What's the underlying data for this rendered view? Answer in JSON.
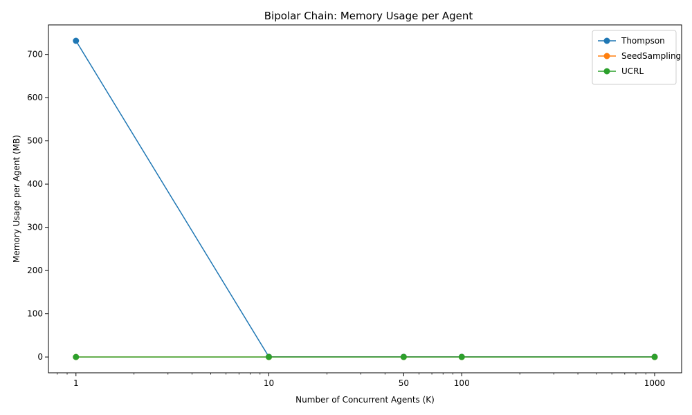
{
  "chart_data": {
    "type": "line",
    "title": "Bipolar Chain: Memory Usage per Agent",
    "xlabel": "Number of Concurrent Agents (K)",
    "ylabel": "Memory Usage per Agent (MB)",
    "x_scale": "log",
    "xlim": [
      0.72,
      1380
    ],
    "ylim": [
      -36.6,
      768.3
    ],
    "x_ticks": [
      1,
      10,
      50,
      100,
      1000
    ],
    "x_tick_labels": [
      "1",
      "10",
      "50",
      "100",
      "1000"
    ],
    "y_ticks": [
      0,
      100,
      200,
      300,
      400,
      500,
      600,
      700
    ],
    "y_tick_labels": [
      "0",
      "100",
      "200",
      "300",
      "400",
      "500",
      "600",
      "700"
    ],
    "grid": false,
    "legend_position": "top-right",
    "x": [
      1,
      10,
      50,
      100,
      1000
    ],
    "series": [
      {
        "name": "Thompson",
        "color": "#1f77b4",
        "values": [
          731.5,
          0.5,
          0.5,
          0.4,
          0.4
        ]
      },
      {
        "name": "SeedSampling",
        "color": "#ff7f0e",
        "values": [
          0.0,
          0.0,
          0.0,
          0.0,
          0.0
        ]
      },
      {
        "name": "UCRL",
        "color": "#2ca02c",
        "values": [
          0.0,
          0.0,
          0.0,
          0.0,
          0.0
        ]
      }
    ]
  }
}
